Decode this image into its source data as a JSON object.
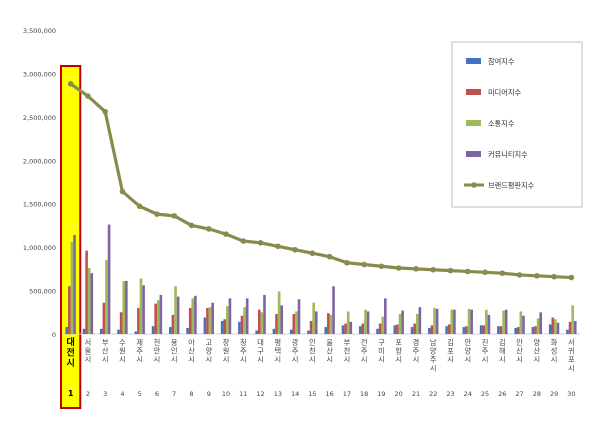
{
  "chart_data": {
    "type": "bar",
    "title": "",
    "xlabel": "",
    "ylabel": "",
    "ylim": [
      0,
      3500000
    ],
    "yticks": [
      "0",
      "500,000",
      "1,000,000",
      "1,500,000",
      "2,000,000",
      "2,500,000",
      "3,000,000",
      "3,500,000"
    ],
    "grid": false,
    "legend_position": "top-right",
    "highlight_index": 0,
    "highlight_color": "#ffff00",
    "highlight_border": "#c00000",
    "categories": [
      "대전시",
      "서울시",
      "부산시",
      "수원시",
      "제주시",
      "천안시",
      "용인시",
      "아산시",
      "고양시",
      "창원시",
      "청주시",
      "대구시",
      "평택시",
      "광주시",
      "인천시",
      "울산시",
      "부천시",
      "전주시",
      "구미시",
      "포항시",
      "경주시",
      "남양주시",
      "김포시",
      "안양시",
      "진주시",
      "김해시",
      "안산시",
      "양산시",
      "화성시",
      "서귀포시"
    ],
    "ranks": [
      "1",
      "2",
      "3",
      "4",
      "5",
      "6",
      "7",
      "8",
      "9",
      "10",
      "11",
      "12",
      "13",
      "14",
      "15",
      "16",
      "17",
      "18",
      "19",
      "20",
      "21",
      "22",
      "23",
      "24",
      "25",
      "26",
      "27",
      "28",
      "29",
      "30"
    ],
    "colors": {
      "participation": "#4472c4",
      "media": "#c0504d",
      "communication": "#9bbb59",
      "community": "#8064a2",
      "brand": "#8b8a4e"
    },
    "series": [
      {
        "name": "참여지수",
        "key": "participation",
        "kind": "bar",
        "values": [
          80000,
          60000,
          60000,
          50000,
          30000,
          90000,
          80000,
          70000,
          190000,
          150000,
          140000,
          40000,
          60000,
          50000,
          40000,
          80000,
          100000,
          90000,
          60000,
          100000,
          80000,
          70000,
          90000,
          80000,
          100000,
          90000,
          70000,
          80000,
          110000,
          50000
        ]
      },
      {
        "name": "미디어지수",
        "key": "media",
        "kind": "bar",
        "values": [
          550000,
          960000,
          360000,
          250000,
          300000,
          350000,
          220000,
          300000,
          300000,
          170000,
          210000,
          280000,
          230000,
          230000,
          150000,
          240000,
          120000,
          120000,
          120000,
          110000,
          120000,
          100000,
          110000,
          90000,
          100000,
          90000,
          80000,
          90000,
          190000,
          140000
        ]
      },
      {
        "name": "소통지수",
        "key": "communication",
        "kind": "bar",
        "values": [
          1060000,
          760000,
          850000,
          610000,
          640000,
          390000,
          550000,
          410000,
          310000,
          320000,
          310000,
          250000,
          490000,
          260000,
          360000,
          220000,
          260000,
          280000,
          200000,
          230000,
          230000,
          300000,
          280000,
          290000,
          280000,
          270000,
          260000,
          180000,
          170000,
          330000
        ]
      },
      {
        "name": "커뮤니티지수",
        "key": "community",
        "kind": "bar",
        "values": [
          1140000,
          700000,
          1260000,
          610000,
          560000,
          450000,
          430000,
          440000,
          360000,
          410000,
          410000,
          450000,
          330000,
          400000,
          260000,
          550000,
          140000,
          260000,
          410000,
          270000,
          310000,
          290000,
          280000,
          280000,
          220000,
          280000,
          210000,
          250000,
          130000,
          150000
        ]
      },
      {
        "name": "브랜드평판지수",
        "key": "brand",
        "kind": "line",
        "values": [
          2880000,
          2740000,
          2560000,
          1640000,
          1470000,
          1380000,
          1360000,
          1250000,
          1210000,
          1150000,
          1070000,
          1050000,
          1010000,
          970000,
          930000,
          890000,
          820000,
          800000,
          780000,
          760000,
          750000,
          740000,
          730000,
          720000,
          710000,
          700000,
          680000,
          670000,
          660000,
          650000
        ]
      }
    ]
  }
}
